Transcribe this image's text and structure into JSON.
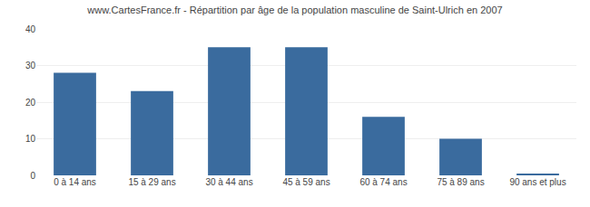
{
  "chart_data": {
    "type": "bar",
    "title": "www.CartesFrance.fr - Répartition par âge de la population masculine de Saint-Ulrich en 2007",
    "categories": [
      "0 à 14 ans",
      "15 à 29 ans",
      "30 à 44 ans",
      "45 à 59 ans",
      "60 à 74 ans",
      "75 à 89 ans",
      "90 ans et plus"
    ],
    "values": [
      28,
      23,
      35,
      35,
      16,
      10,
      0.5
    ],
    "color": "#3a6b9e",
    "ylim": [
      0,
      40
    ],
    "yticks": [
      0,
      10,
      20,
      30,
      40
    ],
    "grid": true
  }
}
